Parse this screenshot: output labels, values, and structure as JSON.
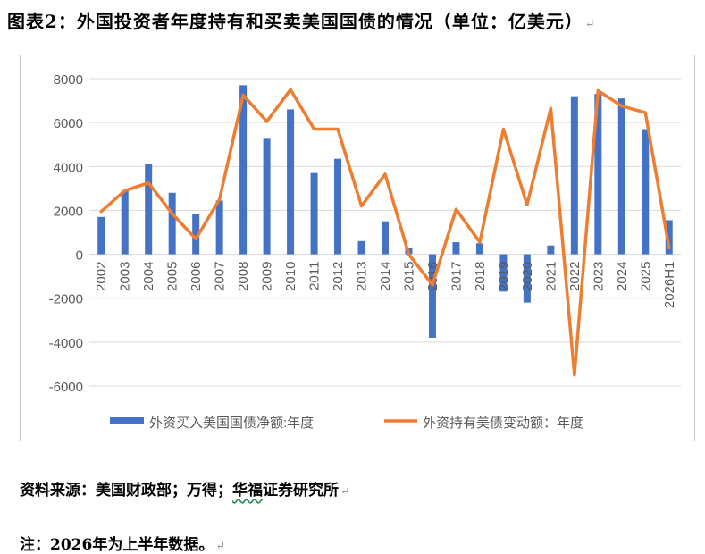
{
  "title": "图表2：外国投资者年度持有和买卖美国国债的情况（单位：亿美元）",
  "paragraph_mark": "↵",
  "source_prefix": "资料来源：美国财政部；万得；",
  "source_cite": "华福",
  "source_suffix": "证券研究所",
  "note": "注：2026年为上半年数据。",
  "colors": {
    "bar": "#4472C4",
    "line": "#ED7D31",
    "grid": "#D9D9D9",
    "axis_text": "#595959"
  },
  "chart_data": {
    "type": "bar",
    "title": "",
    "xlabel": "",
    "ylabel": "",
    "ylim": [
      -6000,
      8000
    ],
    "yticks": [
      8000,
      6000,
      4000,
      2000,
      0,
      -2000,
      -4000,
      -6000
    ],
    "grid": true,
    "legend_position": "bottom",
    "categories": [
      "2002",
      "2003",
      "2004",
      "2005",
      "2006",
      "2007",
      "2008",
      "2009",
      "2010",
      "2011",
      "2012",
      "2013",
      "2014",
      "2015",
      "2016",
      "2017",
      "2018",
      "2019",
      "2020",
      "2021",
      "2022",
      "2023",
      "2024",
      "2025",
      "2026H1"
    ],
    "series": [
      {
        "name": "外资买入美国国债净额:年度",
        "type": "bar",
        "values": [
          1700,
          2900,
          4100,
          2800,
          1850,
          2450,
          7700,
          5300,
          6600,
          3700,
          4350,
          600,
          1500,
          300,
          -3800,
          550,
          500,
          -1700,
          -2200,
          400,
          7200,
          7300,
          7100,
          5700,
          1550
        ]
      },
      {
        "name": "外资持有美债变动额：年度",
        "type": "line",
        "values": [
          1950,
          2900,
          3250,
          1850,
          700,
          2500,
          7250,
          6050,
          7500,
          5700,
          5700,
          2200,
          3650,
          0,
          -1400,
          2050,
          550,
          5700,
          2250,
          6650,
          -5500,
          7450,
          6750,
          6450,
          300
        ]
      }
    ]
  }
}
